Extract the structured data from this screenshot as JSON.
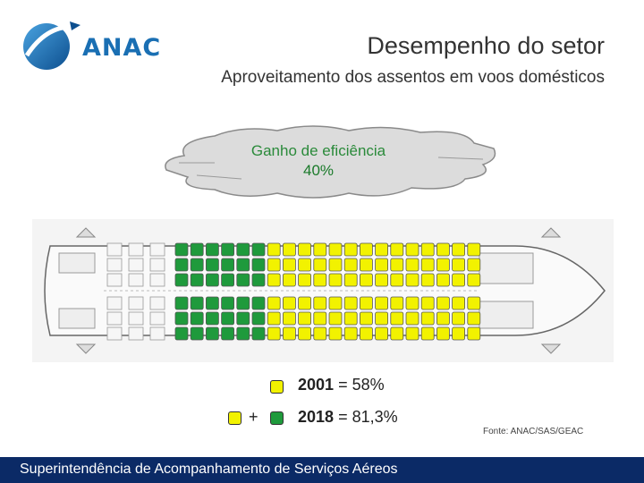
{
  "header": {
    "logo_text": "ANAC",
    "title": "Desempenho do setor",
    "subtitle": "Aproveitamento dos assentos em voos domésticos"
  },
  "callout": {
    "line1": "Ganho de eficiência",
    "line2": "40%"
  },
  "seatmap": {
    "green_columns": 6,
    "yellow_columns": 14,
    "colors": {
      "green": "#1f9a3c",
      "yellow": "#f2f200",
      "outline": "#ffffff"
    }
  },
  "legend": {
    "row1_year": "2001",
    "row1_value": "= 58%",
    "row2_plus": "+",
    "row2_year": "2018",
    "row2_value": "= 81,3%"
  },
  "source": "Fonte: ANAC/SAS/GEAC",
  "footer": "Superintendência de Acompanhamento de Serviços Aéreos"
}
